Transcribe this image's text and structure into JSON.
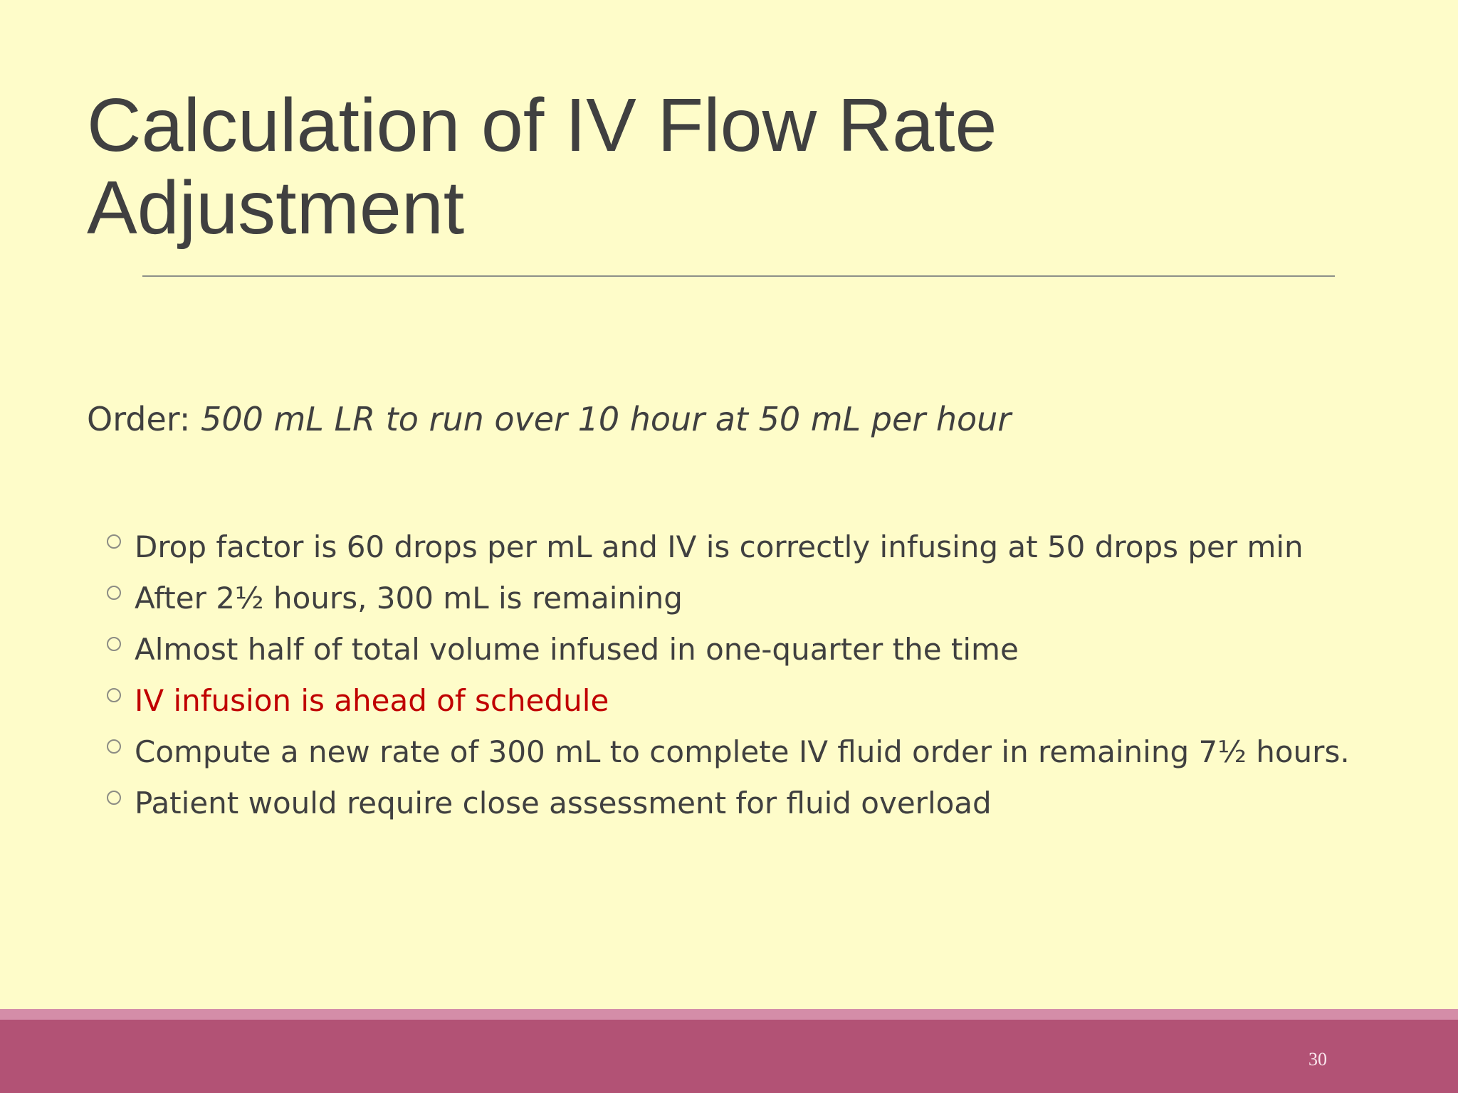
{
  "slide": {
    "title": "Calculation of IV Flow Rate Adjustment",
    "order_label": "Order:",
    "order_detail": "500 mL LR to run over 10 hour at 50 mL per hour",
    "bullets": [
      "Drop factor is 60 drops per mL and IV is correctly infusing at 50 drops per min",
      "After 2½ hours, 300 mL is remaining",
      "Almost half of total volume infused in one-quarter the time",
      "IV infusion is ahead of schedule",
      "Compute a new rate of 300 mL to complete IV fluid order in remaining 7½ hours.",
      "Patient would require close assessment for fluid overload"
    ],
    "page_number": "30"
  },
  "colors": {
    "background": "#fefcc9",
    "text": "#404040",
    "highlight": "#c00000",
    "footer": "#b25275",
    "footer_accent": "#d48da8"
  }
}
